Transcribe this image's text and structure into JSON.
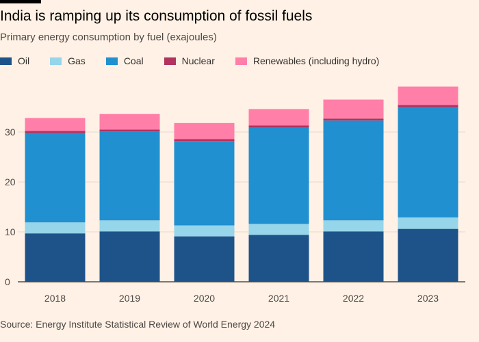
{
  "header": {
    "title": "India is ramping up its consumption of fossil fuels",
    "subtitle": "Primary energy consumption by fuel (exajoules)"
  },
  "legend": [
    {
      "label": "Oil",
      "color": "#1e538a"
    },
    {
      "label": "Gas",
      "color": "#96d5ea"
    },
    {
      "label": "Coal",
      "color": "#2090d0"
    },
    {
      "label": "Nuclear",
      "color": "#b2335f"
    },
    {
      "label": "Renewables (including hydro)",
      "color": "#ff7fa9"
    }
  ],
  "footer": {
    "source": "Source: Energy Institute Statistical Review of World Energy 2024"
  },
  "chart_data": {
    "type": "bar",
    "stacked": true,
    "title": "India is ramping up its consumption of fossil fuels",
    "subtitle": "Primary energy consumption by fuel (exajoules)",
    "xlabel": "",
    "ylabel": "",
    "categories": [
      "2018",
      "2019",
      "2020",
      "2021",
      "2022",
      "2023"
    ],
    "ylim": [
      0,
      38
    ],
    "yticks": [
      0,
      10,
      20,
      30
    ],
    "grid": true,
    "series": [
      {
        "name": "Oil",
        "color": "#1e538a",
        "values": [
          9.7,
          10.1,
          9.1,
          9.4,
          10.1,
          10.6
        ]
      },
      {
        "name": "Gas",
        "color": "#96d5ea",
        "values": [
          2.2,
          2.2,
          2.2,
          2.2,
          2.2,
          2.3
        ]
      },
      {
        "name": "Coal",
        "color": "#2090d0",
        "values": [
          17.9,
          17.8,
          16.9,
          19.3,
          20.0,
          22.1
        ]
      },
      {
        "name": "Nuclear",
        "color": "#b2335f",
        "values": [
          0.4,
          0.4,
          0.4,
          0.4,
          0.4,
          0.4
        ]
      },
      {
        "name": "Renewables (including hydro)",
        "color": "#ff7fa9",
        "values": [
          2.6,
          3.1,
          3.2,
          3.3,
          3.8,
          3.7
        ]
      }
    ]
  }
}
